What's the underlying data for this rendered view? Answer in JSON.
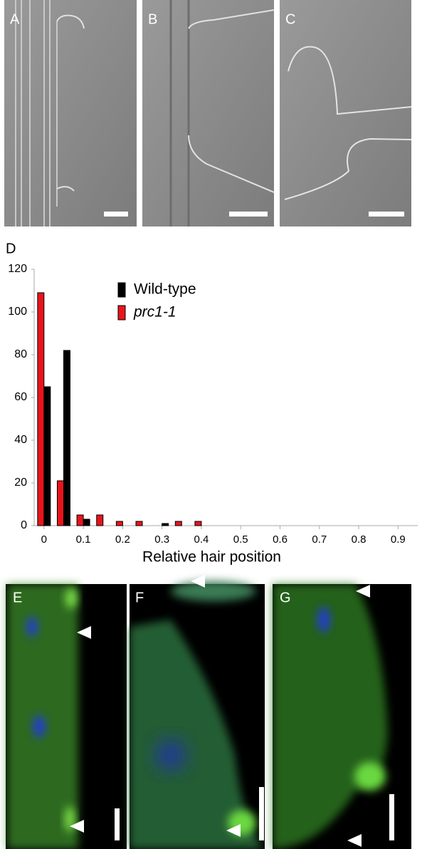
{
  "panels": {
    "top": [
      "A",
      "B",
      "C"
    ],
    "bottom": [
      "E",
      "F",
      "G"
    ]
  },
  "chart_data": {
    "type": "bar",
    "panel_label": "D",
    "xlabel": "Relative hair position",
    "x": [
      0,
      0.05,
      0.1,
      0.15,
      0.2,
      0.25,
      0.3,
      0.35,
      0.4
    ],
    "series": [
      {
        "name": "Wild-type",
        "color": "#000000",
        "values": [
          65,
          82,
          3,
          0,
          0,
          0,
          1,
          0,
          0
        ]
      },
      {
        "name": "prc1-1",
        "color": "#e8141b",
        "values": [
          109,
          21,
          5,
          5,
          2,
          2,
          0,
          2,
          2
        ]
      }
    ],
    "xlim": [
      -0.025,
      0.95
    ],
    "xticks": [
      0,
      0.1,
      0.2,
      0.3,
      0.4,
      0.5,
      0.6,
      0.7,
      0.8,
      0.9
    ],
    "ylim": [
      0,
      120
    ],
    "yticks": [
      0,
      20,
      40,
      60,
      80,
      100,
      120
    ]
  }
}
